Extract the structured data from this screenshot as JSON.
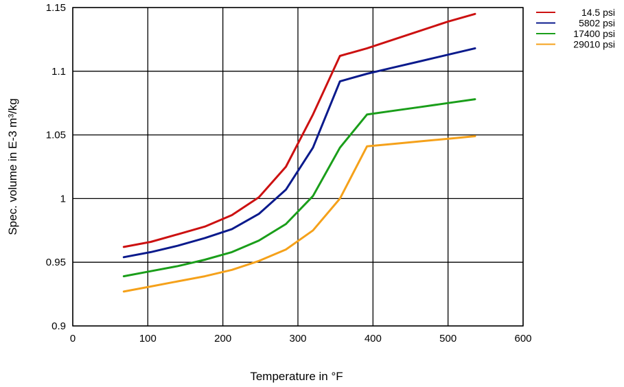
{
  "chart_data": {
    "type": "line",
    "title": "",
    "xlabel": "Temperature in °F",
    "ylabel": "Spec. volume in E-3 m³/kg",
    "xlim": [
      0,
      600
    ],
    "ylim": [
      0.9,
      1.15
    ],
    "x_ticks": [
      "0",
      "100",
      "200",
      "300",
      "400",
      "500",
      "600"
    ],
    "y_ticks": [
      "0.9",
      "0.95",
      "1",
      "1.05",
      "1.1",
      "1.15"
    ],
    "grid": true,
    "legend_position": "top-right, outside plot",
    "series": [
      {
        "name": "14.5 psi",
        "color": "#cc1111",
        "x": [
          68,
          104,
          140,
          176,
          212,
          248,
          284,
          320,
          356,
          392,
          428,
          464,
          500,
          536
        ],
        "y": [
          0.962,
          0.966,
          0.972,
          0.978,
          0.987,
          1.001,
          1.025,
          1.066,
          1.112,
          1.118,
          1.125,
          1.132,
          1.139,
          1.145
        ]
      },
      {
        "name": "5802 psi",
        "color": "#0a1a8c",
        "x": [
          68,
          104,
          140,
          176,
          212,
          248,
          284,
          320,
          356,
          392,
          428,
          464,
          500,
          536
        ],
        "y": [
          0.954,
          0.958,
          0.963,
          0.969,
          0.976,
          0.988,
          1.007,
          1.04,
          1.092,
          1.098,
          1.103,
          1.108,
          1.113,
          1.118
        ]
      },
      {
        "name": "17400 psi",
        "color": "#1a9e1a",
        "x": [
          68,
          104,
          140,
          176,
          212,
          248,
          284,
          320,
          356,
          392,
          428,
          464,
          500,
          536
        ],
        "y": [
          0.939,
          0.943,
          0.947,
          0.952,
          0.958,
          0.967,
          0.98,
          1.002,
          1.04,
          1.066,
          1.069,
          1.072,
          1.075,
          1.078
        ]
      },
      {
        "name": "29010 psi",
        "color": "#f5a11a",
        "x": [
          68,
          104,
          140,
          176,
          212,
          248,
          284,
          320,
          356,
          392,
          428,
          464,
          500,
          536
        ],
        "y": [
          0.927,
          0.931,
          0.935,
          0.939,
          0.944,
          0.951,
          0.96,
          0.975,
          1.0,
          1.041,
          1.043,
          1.045,
          1.047,
          1.049
        ]
      }
    ]
  }
}
